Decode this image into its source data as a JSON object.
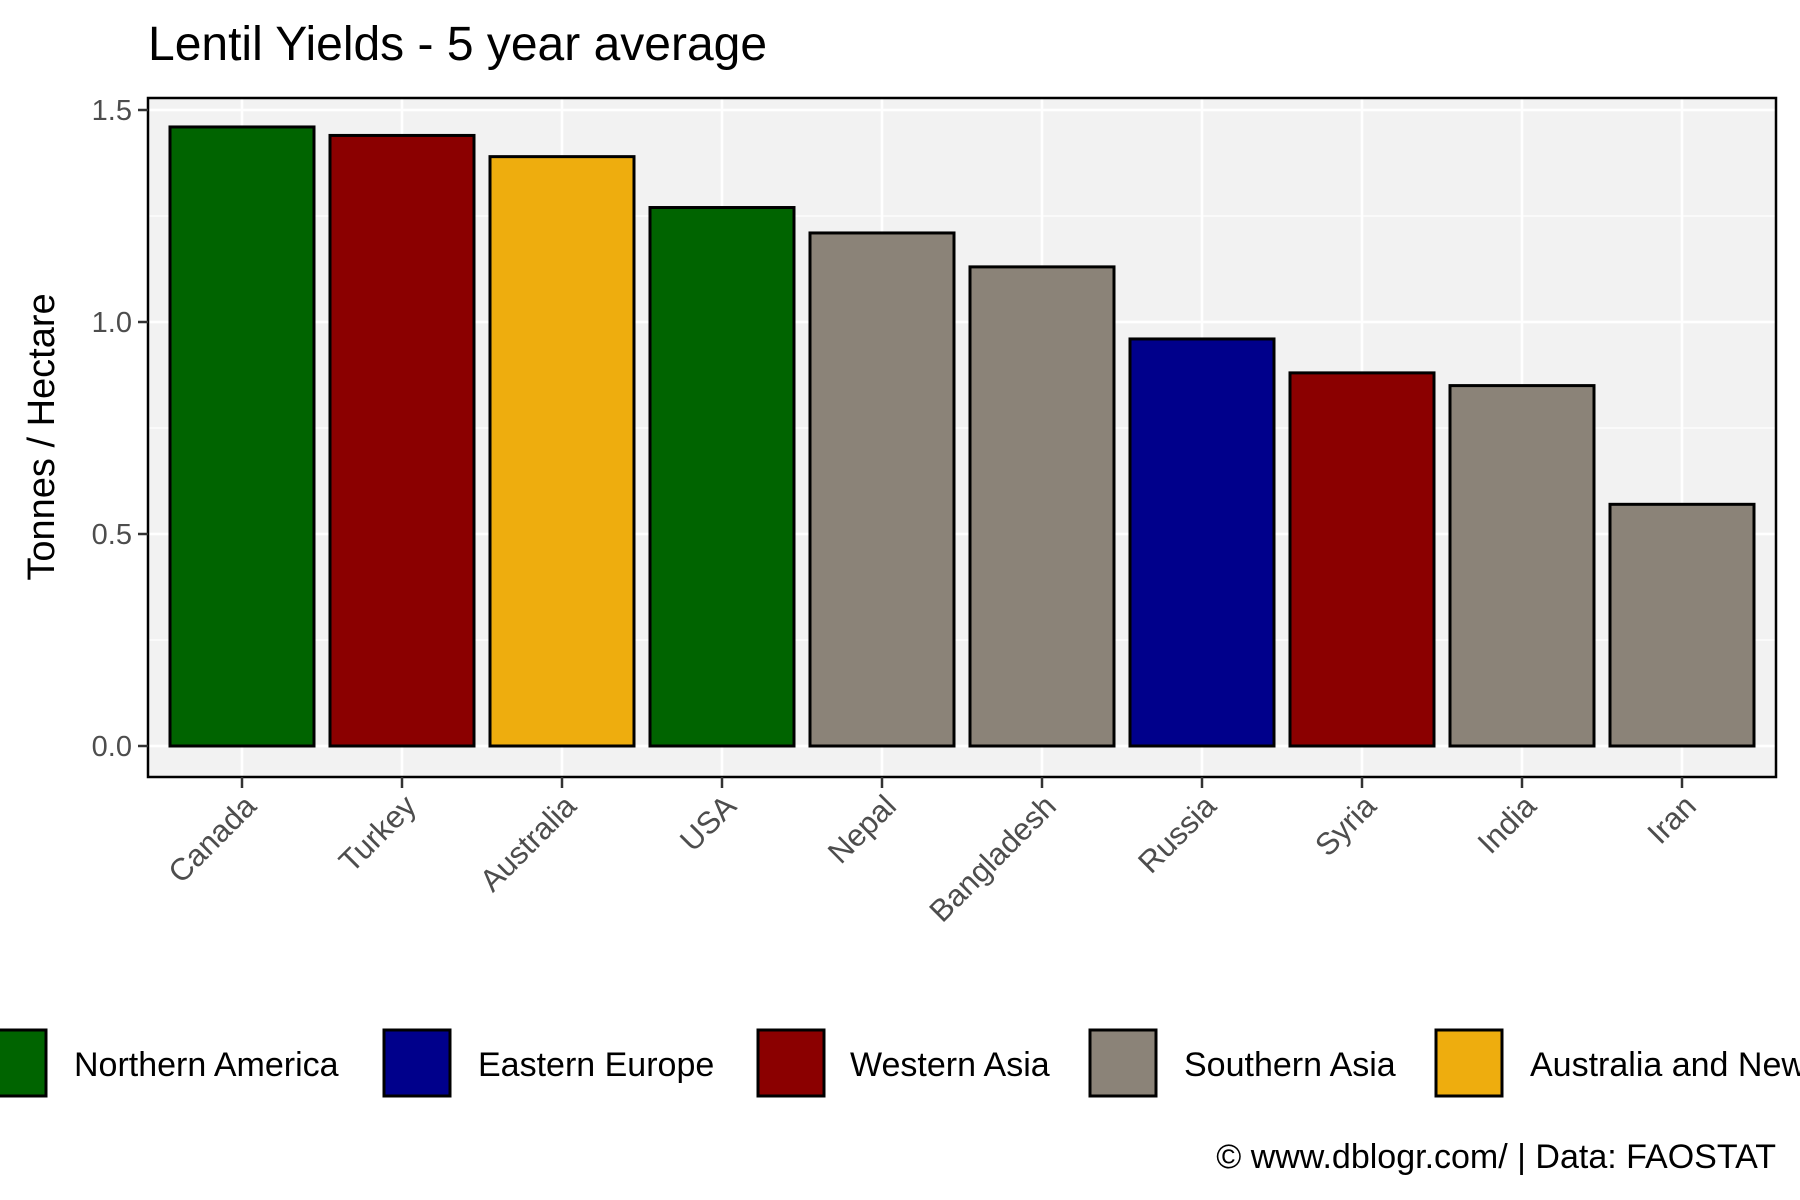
{
  "chart_data": {
    "type": "bar",
    "title": "Lentil Yields - 5 year average",
    "ylabel": "Tonnes / Hectare",
    "xlabel": "",
    "ylim": [
      0,
      1.5
    ],
    "yticks": [
      "0.0",
      "0.5",
      "1.0",
      "1.5"
    ],
    "categories": [
      "Canada",
      "Turkey",
      "Australia",
      "USA",
      "Nepal",
      "Bangladesh",
      "Russia",
      "Syria",
      "India",
      "Iran"
    ],
    "values": [
      1.46,
      1.44,
      1.39,
      1.27,
      1.21,
      1.13,
      0.96,
      0.88,
      0.85,
      0.57
    ],
    "regions": [
      "Northern America",
      "Western Asia",
      "Australia and New Zealand",
      "Northern America",
      "Southern Asia",
      "Southern Asia",
      "Eastern Europe",
      "Western Asia",
      "Southern Asia",
      "Southern Asia"
    ],
    "grid": true,
    "legend_position": "bottom",
    "legend": [
      {
        "name": "Northern America",
        "color": "#006400"
      },
      {
        "name": "Eastern Europe",
        "color": "#00008B"
      },
      {
        "name": "Western Asia",
        "color": "#8B0000"
      },
      {
        "name": "Southern Asia",
        "color": "#8B8378"
      },
      {
        "name": "Australia and New Zealand",
        "color": "#EEAD0E"
      }
    ],
    "caption": "© www.dblogr.com/  |  Data: FAOSTAT"
  }
}
